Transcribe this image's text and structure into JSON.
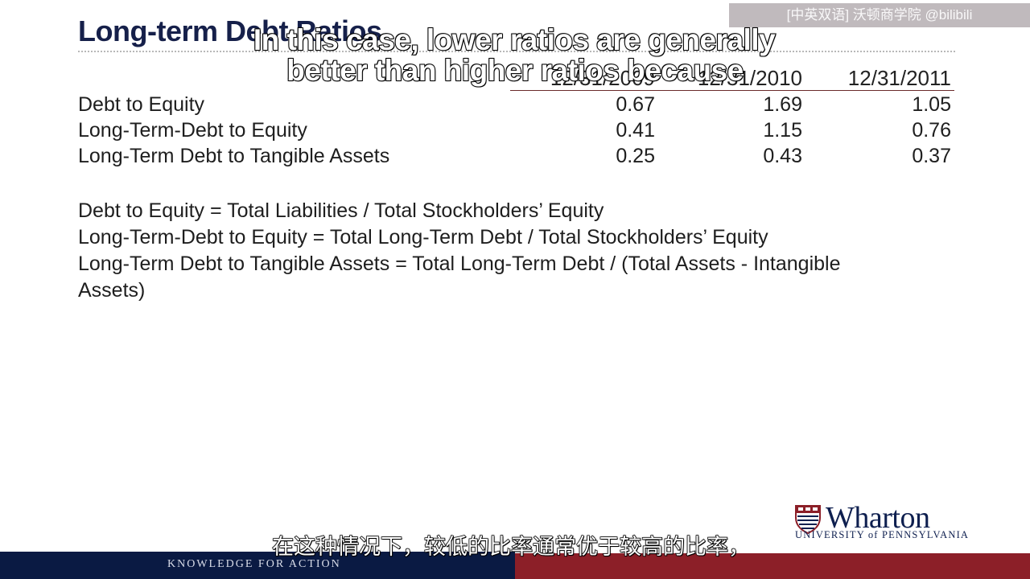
{
  "slide": {
    "title": "Long-term Debt Ratios",
    "table": {
      "headers": [
        "12/31/2009",
        "12/31/2010",
        "12/31/2011"
      ],
      "rows": [
        {
          "label": "Debt to Equity",
          "values": [
            "0.67",
            "1.69",
            "1.05"
          ]
        },
        {
          "label": "Long-Term-Debt to Equity",
          "values": [
            "0.41",
            "1.15",
            "0.76"
          ]
        },
        {
          "label": "Long-Term Debt to Tangible Assets",
          "values": [
            "0.25",
            "0.43",
            "0.37"
          ]
        }
      ]
    },
    "formulas": [
      "Debt to Equity = Total Liabilities / Total Stockholders’ Equity",
      "Long-Term-Debt to Equity = Total Long-Term Debt / Total Stockholders’ Equity",
      "Long-Term Debt to Tangible Assets = Total Long-Term Debt / (Total Assets - Intangible Assets)"
    ]
  },
  "subtitles": {
    "english_line1": "In this case, lower ratios are generally",
    "english_line2": "better than higher ratios because",
    "chinese": "在这种情况下，较低的比率通常优于较高的比率，"
  },
  "watermark": "[中英双语] 沃顿商学院 @bilibili",
  "logo": {
    "name": "Wharton",
    "subtitle": "UNIVERSITY of PENNSYLVANIA"
  },
  "footer": {
    "tagline": "KNOWLEDGE FOR ACTION"
  },
  "colors": {
    "title": "#16204a",
    "footer_navy": "#0a1a43",
    "footer_red": "#8c1f28",
    "header_rule": "#6b2a2a"
  }
}
